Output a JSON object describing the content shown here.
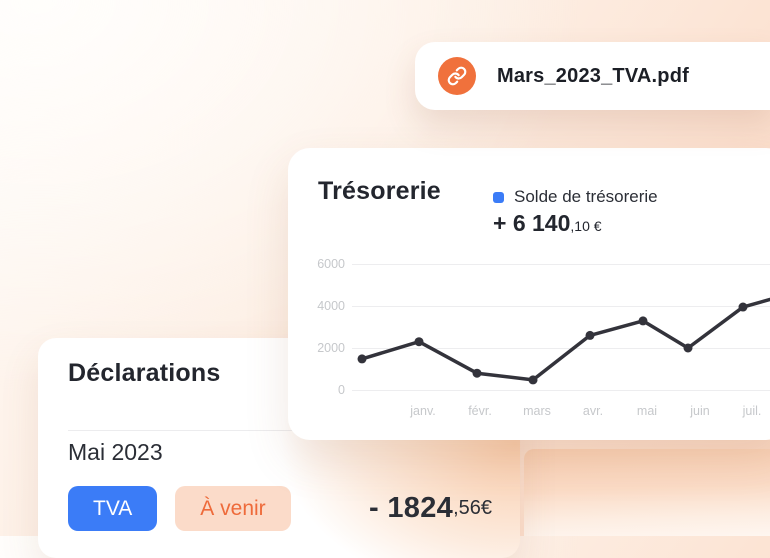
{
  "pdf_card": {
    "filename": "Mars_2023_TVA.pdf",
    "icon": "link-icon"
  },
  "treasury_card": {
    "title": "Trésorerie",
    "legend_label": "Solde de trésorerie",
    "balance_main": "+ 6 140",
    "balance_decimals": ",10 €"
  },
  "chart_data": {
    "type": "line",
    "series": [
      {
        "name": "Solde de trésorerie",
        "values": [
          1480,
          2300,
          800,
          480,
          2600,
          3290,
          2000,
          3950,
          4550
        ]
      }
    ],
    "x_labels": [
      "janv.",
      "févr.",
      "mars",
      "avr.",
      "mai",
      "juin",
      "juil."
    ],
    "y_ticks_top_down": [
      "6000",
      "4000",
      "2000",
      "0"
    ],
    "ylim": [
      0,
      6000
    ],
    "grid": "horizontal",
    "legend_position": "top-right",
    "line_color": "#33333b"
  },
  "declarations_card": {
    "title": "Déclarations",
    "period": "Mai 2023",
    "badges": [
      {
        "label": "TVA",
        "style": "blue"
      },
      {
        "label": "À venir",
        "style": "peach"
      }
    ],
    "amount_main": "- 1824",
    "amount_decimals": ",56€"
  },
  "colors": {
    "accent_blue": "#3b7cf7",
    "accent_orange": "#f0713c",
    "badge_peach_bg": "#fbdbc9",
    "badge_peach_text": "#ee6a3a",
    "text_dark": "#23262e",
    "axis_gray": "#c6c8cb"
  }
}
